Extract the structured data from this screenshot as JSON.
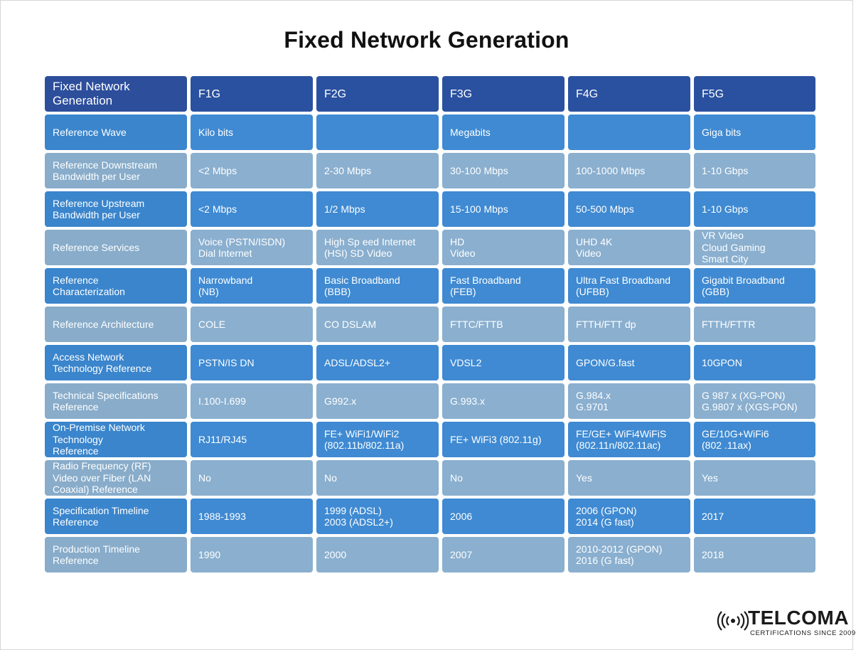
{
  "title": "Fixed Network Generation",
  "header": [
    "Fixed Network\nGeneration",
    "F1G",
    "F2G",
    "F3G",
    "F4G",
    "F5G"
  ],
  "rows": [
    [
      "Reference Wave",
      "Kilo bits",
      "",
      "Megabits",
      "",
      "Giga bits"
    ],
    [
      "Reference Downstream\nBandwidth per User",
      "<2 Mbps",
      "2-30 Mbps",
      "30-100 Mbps",
      "100-1000 Mbps",
      "1-10 Gbps"
    ],
    [
      "Reference Upstream\nBandwidth per User",
      "<2 Mbps",
      "1/2 Mbps",
      "15-100 Mbps",
      "50-500 Mbps",
      "1-10 Gbps"
    ],
    [
      "Reference Services",
      "Voice (PSTN/ISDN)\nDial Internet",
      "High Sp eed Internet\n(HSI) SD Video",
      "HD\nVideo",
      "UHD 4K\nVideo",
      "VR Video\nCloud Gaming\nSmart City"
    ],
    [
      "Reference\nCharacterization",
      "Narrowband\n(NB)",
      "Basic Broadband\n(BBB)",
      "Fast Broadband\n(FEB)",
      "Ultra Fast Broadband\n(UFBB)",
      "Gigabit Broadband\n(GBB)"
    ],
    [
      "Reference Architecture",
      "COLE",
      "CO DSLAM",
      "FTTC/FTTB",
      "FTTH/FTT dp",
      "FTTH/FTTR"
    ],
    [
      "Access Network\nTechnology Reference",
      "PSTN/IS DN",
      "ADSL/ADSL2+",
      "VDSL2",
      "GPON/G.fast",
      "10GPON"
    ],
    [
      "Technical Specifications\nReference",
      "I.100-I.699",
      "G992.x",
      "G.993.x",
      "G.984.x\nG.9701",
      "G 987 x (XG-PON)\nG.9807 x (XGS-PON)"
    ],
    [
      "On-Premise Network\nTechnology\nReference",
      "RJ11/RJ45",
      "FE+ WiFi1/WiFi2\n(802.11b/802.11a)",
      "FE+ WiFi3 (802.11g)",
      "FE/GE+ WiFi4WiFiS\n(802.11n/802.11ac)",
      "GE/10G+WiFi6\n(802 .11ax)"
    ],
    [
      "Radio Frequency (RF)\nVideo over Fiber (LAN\nCoaxial) Reference",
      "No",
      "No",
      "No",
      "Yes",
      "Yes"
    ],
    [
      "Specification Timeline\nReference",
      "1988-1993",
      "1999 (ADSL)\n2003 (ADSL2+)",
      "2006",
      "2006 (GPON)\n2014 (G fast)",
      "2017"
    ],
    [
      "Production Timeline\nReference",
      "1990",
      "2000",
      "2007",
      "2010-2012 (GPON)\n2016 (G fast)",
      "2018"
    ]
  ],
  "logo": {
    "name": "TELCOMA",
    "tagline": "CERTIFICATIONS SINCE 2009"
  }
}
